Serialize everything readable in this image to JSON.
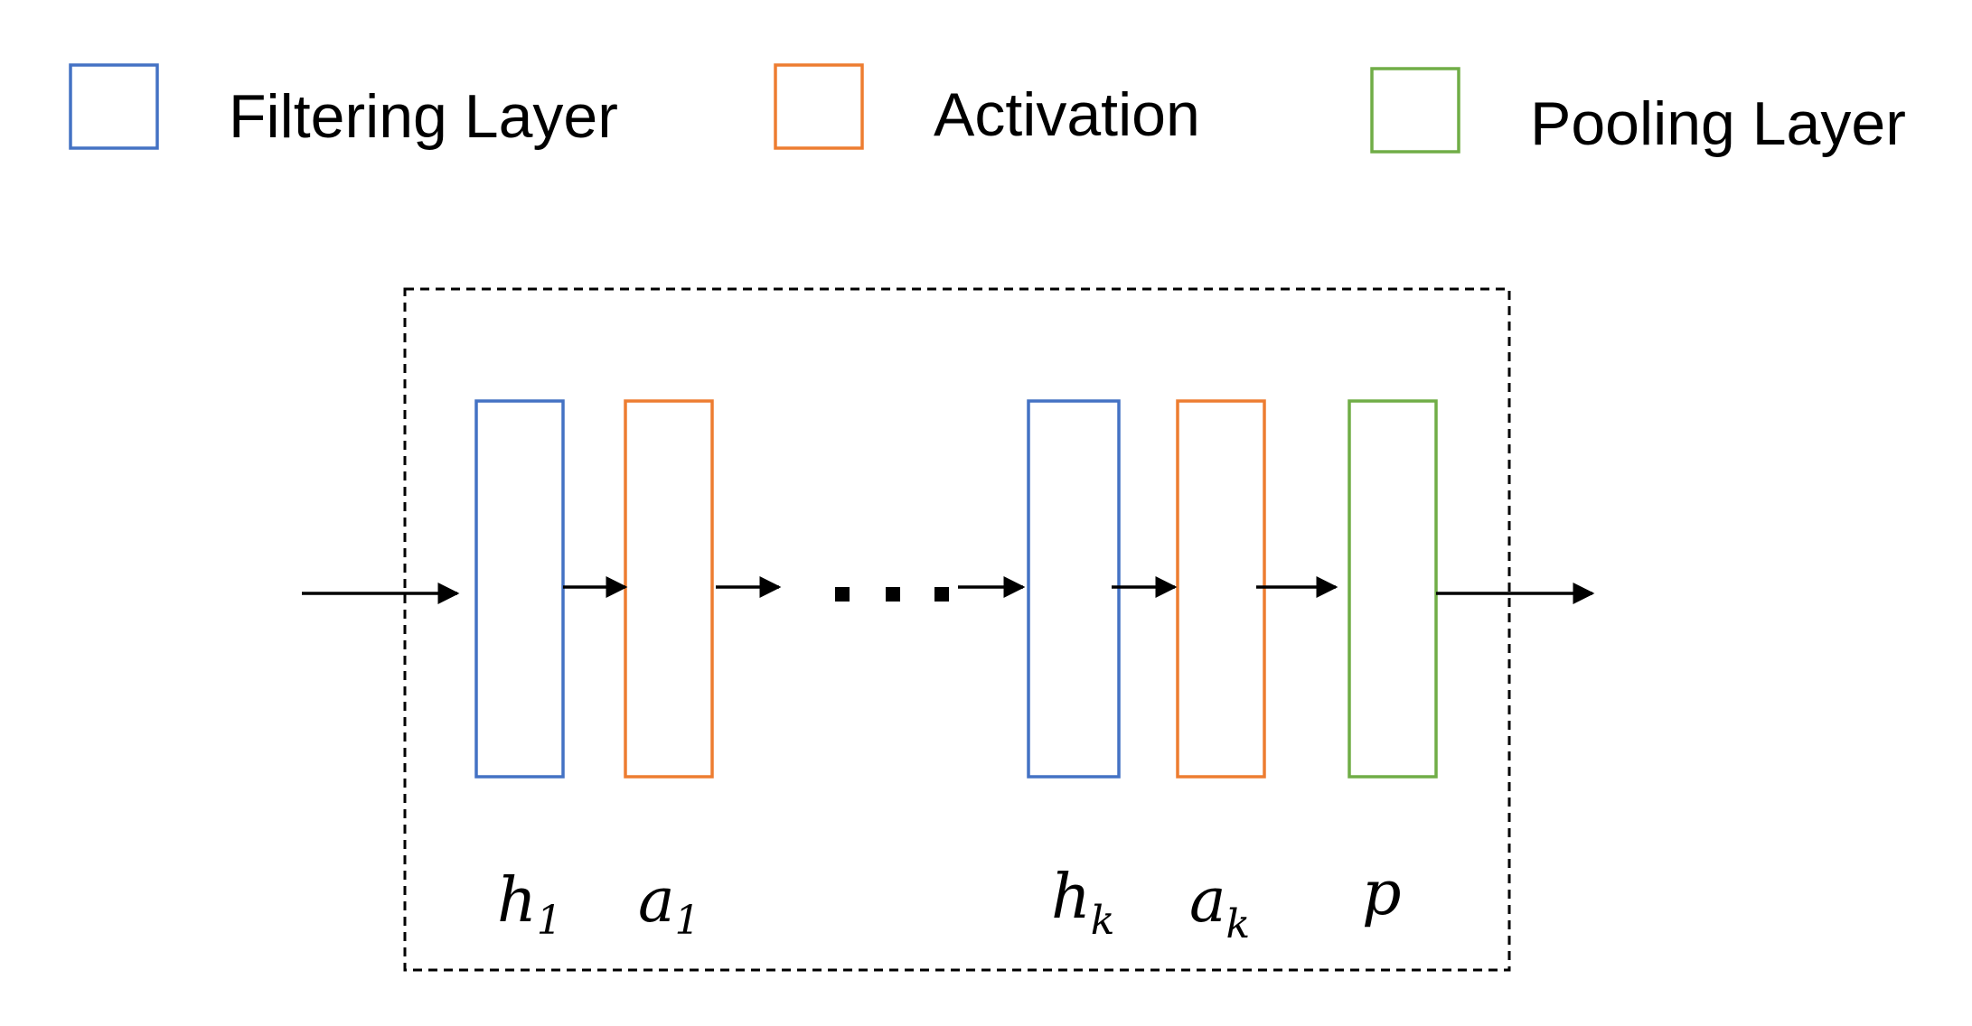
{
  "colors": {
    "filtering": "#4472C4",
    "activation": "#ED7D31",
    "pooling": "#70AD47",
    "ink": "#000000"
  },
  "legend": {
    "filtering_label": "Filtering Layer",
    "activation_label": "Activation",
    "pooling_label": "Pooling Layer"
  },
  "blocks": {
    "h1": {
      "base": "h",
      "sub": "1"
    },
    "a1": {
      "base": "a",
      "sub": "1"
    },
    "hk": {
      "base": "h",
      "sub": "k"
    },
    "ak": {
      "base": "a",
      "sub": "k"
    },
    "p": {
      "base": "p",
      "sub": ""
    }
  }
}
